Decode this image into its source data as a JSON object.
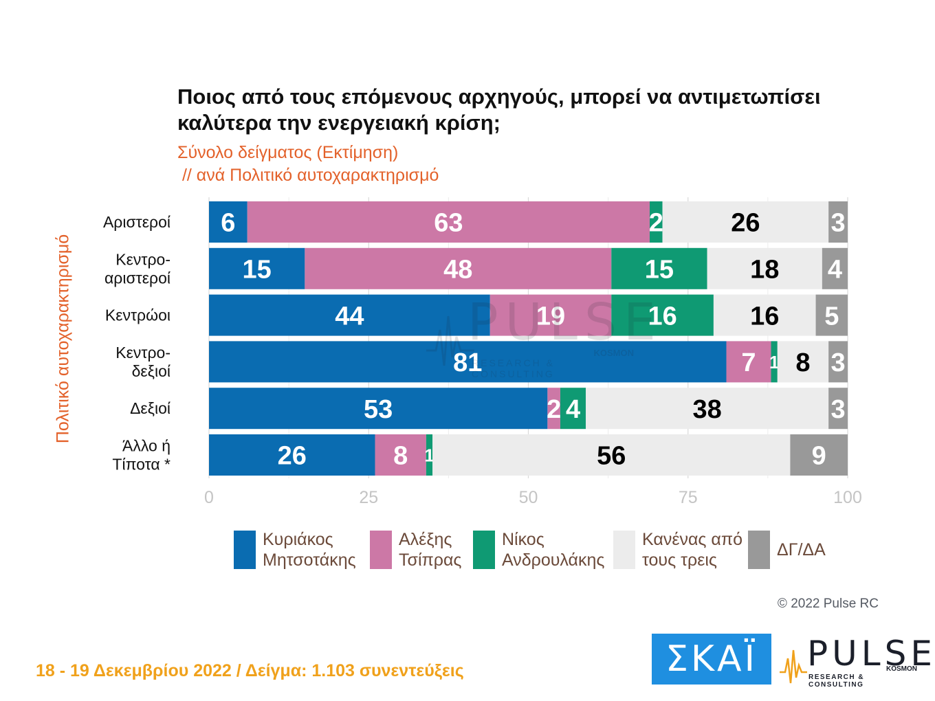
{
  "title": "Ποιος από τους επόμενους αρχηγούς, μπορεί να αντιμετωπίσει καλύτερα την ενεργειακή κρίση;",
  "subtitle_line1": "Σύνολο δείγματος  (Εκτίμηση)",
  "subtitle_line2": " // ανά Πολιτικό αυτοχαρακτηρισμό",
  "copyright": "© 2022 Pulse RC",
  "footer": "18 - 19  Δεκεμβρίου  2022  /  Δείγμα:  1.103 συνεντεύξεις",
  "logos": {
    "skai": "ΣΚΑΪ",
    "pulse": "PULSE",
    "pulse_kosmon": "KOSMON",
    "pulse_sub": "RESEARCH & CONSULTING"
  },
  "chart_data": {
    "type": "bar",
    "orientation": "horizontal",
    "stacked": true,
    "ylabel": "Πολιτικό αυτοχαρακτηρισμό",
    "xlim": [
      0,
      100
    ],
    "xticks": [
      0,
      25,
      50,
      75,
      100
    ],
    "grid": true,
    "legend_position": "bottom",
    "categories": [
      "Αριστεροί",
      "Κεντρο-\nαριστεροί",
      "Κεντρώοι",
      "Κεντρο-\nδεξιοί",
      "Δεξιοί",
      "Άλλο ή\nΤίποτα *"
    ],
    "series": [
      {
        "name": "Κυριάκος\nΜητσοτάκης",
        "color": "#0a6cb1",
        "label_color": "#ffffff",
        "values": [
          6,
          15,
          44,
          81,
          53,
          26
        ]
      },
      {
        "name": "Αλέξης\nΤσίπρας",
        "color": "#cc78a6",
        "label_color": "#ffffff",
        "values": [
          63,
          48,
          19,
          7,
          2,
          8
        ]
      },
      {
        "name": "Νίκος\nΑνδρουλάκης",
        "color": "#0f9a73",
        "label_color": "#ffffff",
        "values": [
          2,
          15,
          16,
          1,
          4,
          1
        ]
      },
      {
        "name": "Κανένας από\nτους τρεις",
        "color": "#ececec",
        "label_color": "#000000",
        "values": [
          26,
          18,
          16,
          8,
          38,
          56
        ]
      },
      {
        "name": "ΔΓ/ΔΑ",
        "color": "#999999",
        "label_color": "#ffffff",
        "values": [
          3,
          4,
          5,
          3,
          3,
          9
        ]
      }
    ]
  }
}
